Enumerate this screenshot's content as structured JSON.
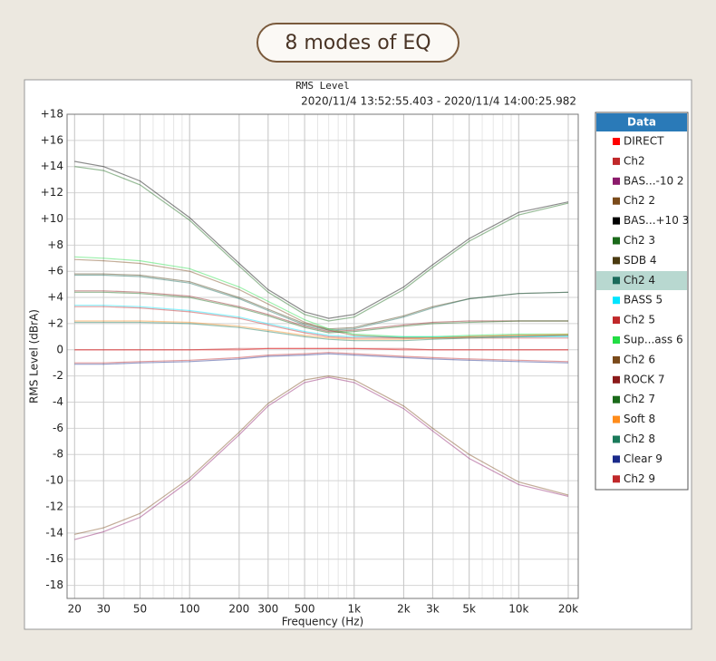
{
  "header": {
    "title": "8 modes of EQ"
  },
  "chart_data": {
    "type": "line",
    "title": "RMS Level",
    "subtitle": "2020/11/4 13:52:55.403 - 2020/11/4 14:00:25.982",
    "x_label": "Frequency (Hz)",
    "y_label": "RMS Level (dBrA)",
    "legend_title": "Data",
    "x_scale": "log",
    "grid": true,
    "legend_position": "right",
    "xlim": [
      18,
      23000
    ],
    "ylim": [
      -19,
      18
    ],
    "xticks": [
      20,
      30,
      50,
      100,
      200,
      300,
      500,
      {
        "value": 1000,
        "label": "1k"
      },
      {
        "value": 2000,
        "label": "2k"
      },
      {
        "value": 3000,
        "label": "3k"
      },
      {
        "value": 5000,
        "label": "5k"
      },
      {
        "value": 10000,
        "label": "10k"
      },
      {
        "value": 20000,
        "label": "20k"
      }
    ],
    "yticks": [
      {
        "value": 18,
        "label": "+18"
      },
      {
        "value": 16,
        "label": "+16"
      },
      {
        "value": 14,
        "label": "+14"
      },
      {
        "value": 12,
        "label": "+12"
      },
      {
        "value": 10,
        "label": "+10"
      },
      {
        "value": 8,
        "label": "+8"
      },
      {
        "value": 6,
        "label": "+6"
      },
      {
        "value": 4,
        "label": "+4"
      },
      {
        "value": 2,
        "label": "+2"
      },
      0,
      -2,
      -4,
      -6,
      -8,
      -10,
      -12,
      -14,
      -16,
      -18
    ],
    "x": [
      20,
      30,
      50,
      100,
      200,
      300,
      500,
      700,
      1000,
      2000,
      3000,
      5000,
      10000,
      20000
    ],
    "series": [
      {
        "name": "DIRECT",
        "color": "#ff0000",
        "values": [
          0,
          0,
          0,
          0,
          0,
          0.1,
          0.1,
          0.1,
          0.1,
          0,
          0,
          0,
          0,
          0
        ]
      },
      {
        "name": "Ch2",
        "color": "#c0282a",
        "values": [
          0,
          0,
          0,
          0,
          0.1,
          0.1,
          0.1,
          0.1,
          0.1,
          0.1,
          0,
          0,
          0,
          0
        ]
      },
      {
        "name": "BAS...-10 2",
        "color": "#8b1a6b",
        "values": [
          -14.5,
          -13.9,
          -12.8,
          -10,
          -6.5,
          -4.3,
          -2.5,
          -2.1,
          -2.5,
          -4.5,
          -6.2,
          -8.3,
          -10.3,
          -11.2
        ]
      },
      {
        "name": "Ch2 2",
        "color": "#7a4a1a",
        "values": [
          -14.1,
          -13.6,
          -12.5,
          -9.8,
          -6.3,
          -4.1,
          -2.3,
          -2.0,
          -2.3,
          -4.3,
          -6.0,
          -8.0,
          -10.1,
          -11.1
        ]
      },
      {
        "name": "BAS...+10 3",
        "color": "#000000",
        "values": [
          14.4,
          14.0,
          12.9,
          10.1,
          6.6,
          4.6,
          2.9,
          2.4,
          2.7,
          4.8,
          6.5,
          8.5,
          10.5,
          11.3
        ]
      },
      {
        "name": "Ch2 3",
        "color": "#1a6a1a",
        "values": [
          14.0,
          13.7,
          12.6,
          9.9,
          6.4,
          4.4,
          2.7,
          2.2,
          2.5,
          4.6,
          6.3,
          8.3,
          10.3,
          11.2
        ]
      },
      {
        "name": "SDB 4",
        "color": "#4a3a10",
        "values": [
          5.8,
          5.8,
          5.7,
          5.2,
          4.0,
          3.1,
          2.0,
          1.6,
          1.7,
          2.6,
          3.3,
          3.9,
          4.3,
          4.4
        ]
      },
      {
        "name": "Ch2 4",
        "color": "#1a6a5a",
        "values": [
          5.7,
          5.7,
          5.6,
          5.1,
          3.9,
          3.0,
          1.9,
          1.5,
          1.6,
          2.5,
          3.2,
          3.9,
          4.3,
          4.4
        ]
      },
      {
        "name": "BASS 5",
        "color": "#00e5ff",
        "values": [
          3.4,
          3.4,
          3.3,
          3.0,
          2.5,
          2.0,
          1.4,
          1.1,
          1.0,
          1.0,
          1.0,
          1.0,
          1.0,
          1.0
        ]
      },
      {
        "name": "Ch2 5",
        "color": "#c0282a",
        "values": [
          3.3,
          3.3,
          3.2,
          2.9,
          2.4,
          1.9,
          1.3,
          1.0,
          0.9,
          0.9,
          0.9,
          0.9,
          0.9,
          0.9
        ]
      },
      {
        "name": "Sup...ass 6",
        "color": "#22dd44",
        "values": [
          7.1,
          7.0,
          6.8,
          6.2,
          4.8,
          3.7,
          2.3,
          1.6,
          1.2,
          1.0,
          1.0,
          1.1,
          1.2,
          1.2
        ]
      },
      {
        "name": "Ch2 6",
        "color": "#7a4a1a",
        "values": [
          6.9,
          6.8,
          6.6,
          6.0,
          4.6,
          3.5,
          2.1,
          1.5,
          1.1,
          0.9,
          0.9,
          1.0,
          1.1,
          1.1
        ]
      },
      {
        "name": "ROCK 7",
        "color": "#8b1a1a",
        "values": [
          4.5,
          4.5,
          4.4,
          4.1,
          3.3,
          2.7,
          1.8,
          1.4,
          1.5,
          1.9,
          2.1,
          2.2,
          2.2,
          2.2
        ]
      },
      {
        "name": "Ch2 7",
        "color": "#1a6a1a",
        "values": [
          4.4,
          4.4,
          4.3,
          4.0,
          3.2,
          2.6,
          1.7,
          1.3,
          1.4,
          1.8,
          2.0,
          2.1,
          2.2,
          2.2
        ]
      },
      {
        "name": "Soft 8",
        "color": "#ff8c1a",
        "values": [
          2.2,
          2.2,
          2.2,
          2.1,
          1.8,
          1.5,
          1.1,
          0.9,
          0.8,
          0.8,
          0.9,
          1.0,
          1.1,
          1.2
        ]
      },
      {
        "name": "Ch2 8",
        "color": "#1a7a5a",
        "values": [
          2.1,
          2.1,
          2.1,
          2.0,
          1.7,
          1.4,
          1.0,
          0.8,
          0.7,
          0.7,
          0.8,
          0.9,
          1.0,
          1.1
        ]
      },
      {
        "name": "Clear 9",
        "color": "#1a2a8a",
        "values": [
          -1.1,
          -1.1,
          -1.0,
          -0.9,
          -0.7,
          -0.5,
          -0.4,
          -0.3,
          -0.4,
          -0.6,
          -0.7,
          -0.8,
          -0.9,
          -1.0
        ]
      },
      {
        "name": "Ch2 9",
        "color": "#c0282a",
        "values": [
          -1.0,
          -1.0,
          -0.9,
          -0.8,
          -0.6,
          -0.4,
          -0.3,
          -0.2,
          -0.3,
          -0.5,
          -0.6,
          -0.7,
          -0.8,
          -0.9
        ]
      }
    ]
  }
}
